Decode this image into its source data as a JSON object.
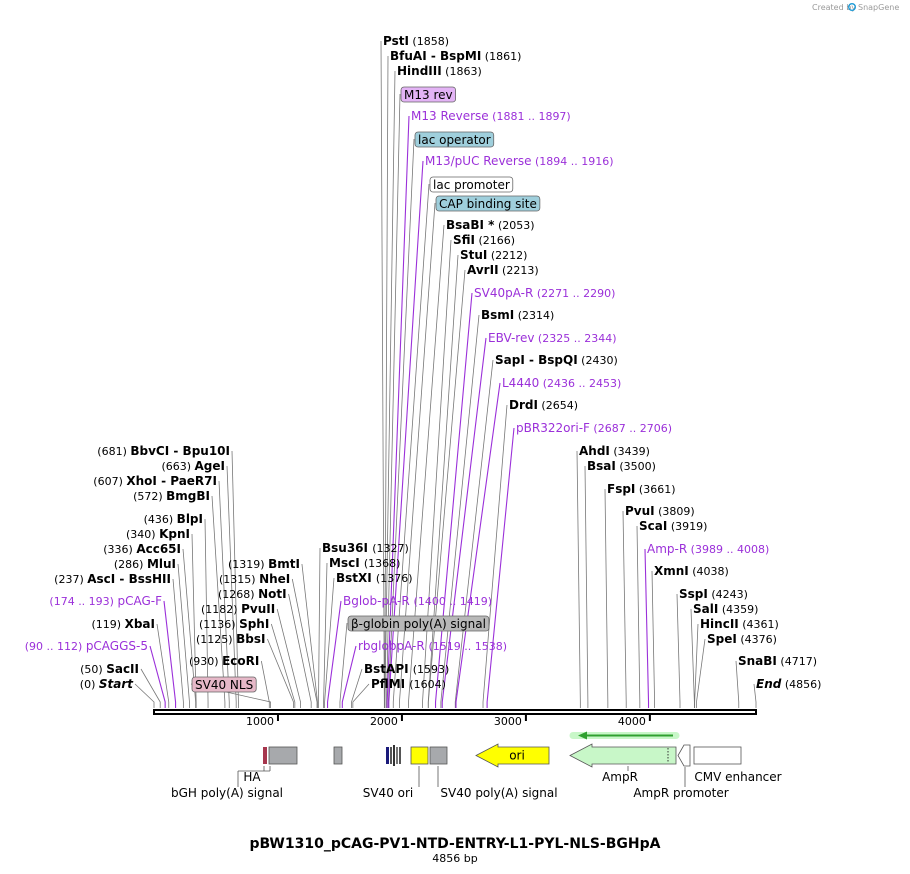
{
  "credit": {
    "created_by": "Created by",
    "brand": "SnapGene"
  },
  "title": "pBW1310_pCAG-PV1-NTD-ENTRY-L1-PYL-NLS-BGHpA",
  "length_label": "4856 bp",
  "total_bp": 4856,
  "axis_ticks": [
    {
      "bp": 1000,
      "label": "1000"
    },
    {
      "bp": 2000,
      "label": "2000"
    },
    {
      "bp": 3000,
      "label": "3000"
    },
    {
      "bp": 4000,
      "label": "4000"
    }
  ],
  "colors": {
    "primer": "#9b30d9",
    "site_line": "#777777",
    "m13_fill": "#e3b3f5",
    "lac_fill": "#9fcfdc",
    "cap_fill": "#9fcfdc",
    "sv40nls_fill": "#e6b8c8",
    "polyA_fill": "#b8b8b8",
    "ori_fill": "#ffff00",
    "ampr_fill": "#c8f7c8",
    "arrow_green": "#2fa02f"
  },
  "left_labels": [
    {
      "bp": 681,
      "pos": "(681)",
      "name": "BbvCI",
      "name2": "Bpu10I"
    },
    {
      "bp": 663,
      "pos": "(663)",
      "name": "AgeI"
    },
    {
      "bp": 607,
      "pos": "(607)",
      "name": "XhoI",
      "name2": "PaeR7I"
    },
    {
      "bp": 572,
      "pos": "(572)",
      "name": "BmgBI"
    },
    {
      "bp": 436,
      "pos": "(436)",
      "name": "BlpI"
    },
    {
      "bp": 340,
      "pos": "(340)",
      "name": "KpnI"
    },
    {
      "bp": 336,
      "pos": "(336)",
      "name": "Acc65I"
    },
    {
      "bp": 286,
      "pos": "(286)",
      "name": "MluI"
    },
    {
      "bp": 237,
      "pos": "(237)",
      "name": "AscI",
      "name2": "BssHII"
    },
    {
      "bp": 174,
      "pos": "(174 .. 193)",
      "name": "pCAG-F",
      "primer": true
    },
    {
      "bp": 119,
      "pos": "(119)",
      "name": "XbaI"
    },
    {
      "bp": 90,
      "pos": "(90 .. 112)",
      "name": "pCAGGS-5",
      "primer": true
    },
    {
      "bp": 50,
      "pos": "(50)",
      "name": "SacII"
    },
    {
      "bp": 0,
      "pos": "(0)",
      "name": "Start",
      "italic": true
    }
  ],
  "mid_left_labels": [
    {
      "bp": 1319,
      "pos": "(1319)",
      "name": "BmtI"
    },
    {
      "bp": 1315,
      "pos": "(1315)",
      "name": "NheI"
    },
    {
      "bp": 1268,
      "pos": "(1268)",
      "name": "NotI"
    },
    {
      "bp": 1182,
      "pos": "(1182)",
      "name": "PvuII"
    },
    {
      "bp": 1136,
      "pos": "(1136)",
      "name": "SphI"
    },
    {
      "bp": 1125,
      "pos": "(1125)",
      "name": "BbsI"
    },
    {
      "bp": 930,
      "pos": "(930)",
      "name": "EcoRI"
    }
  ],
  "mid_labels": [
    {
      "bp": 1327,
      "name": "Bsu36I",
      "pos": "(1327)"
    },
    {
      "bp": 1368,
      "name": "MscI",
      "pos": "(1368)"
    },
    {
      "bp": 1376,
      "name": "BstXI",
      "pos": "(1376)"
    },
    {
      "bp": 1400,
      "name": "Bglob-pA-R",
      "pos": "(1400 .. 1419)",
      "primer": true
    },
    {
      "bp": 1519,
      "name": "rbglobpA-R",
      "pos": "(1519 .. 1538)",
      "primer": true
    },
    {
      "bp": 1593,
      "name": "BstAPI",
      "pos": "(1593)"
    },
    {
      "bp": 1604,
      "name": "PflMI",
      "pos": "(1604)"
    }
  ],
  "top_labels": [
    {
      "bp": 1858,
      "name": "PstI",
      "pos": "(1858)"
    },
    {
      "bp": 1861,
      "name": "BfuAI",
      "name2": "BspMI",
      "pos": "(1861)"
    },
    {
      "bp": 1863,
      "name": "HindIII",
      "pos": "(1863)"
    },
    {
      "bp": 1875,
      "name": "M13 rev",
      "box": "m13"
    },
    {
      "bp": 1881,
      "name": "M13 Reverse",
      "pos": "(1881 .. 1897)",
      "primer": true
    },
    {
      "bp": 1890,
      "name": "lac operator",
      "box": "lac"
    },
    {
      "bp": 1894,
      "name": "M13/pUC Reverse",
      "pos": "(1894 .. 1916)",
      "primer": true
    },
    {
      "bp": 1930,
      "name": "lac promoter",
      "box": "plain"
    },
    {
      "bp": 1980,
      "name": "CAP binding site",
      "box": "cap"
    },
    {
      "bp": 2053,
      "name": "BsaBI *",
      "pos": "(2053)"
    },
    {
      "bp": 2166,
      "name": "SfiI",
      "pos": "(2166)"
    },
    {
      "bp": 2212,
      "name": "StuI",
      "pos": "(2212)"
    },
    {
      "bp": 2213,
      "name": "AvrII",
      "pos": "(2213)"
    },
    {
      "bp": 2271,
      "name": "SV40pA-R",
      "pos": "(2271 .. 2290)",
      "primer": true
    },
    {
      "bp": 2314,
      "name": "BsmI",
      "pos": "(2314)"
    },
    {
      "bp": 2325,
      "name": "EBV-rev",
      "pos": "(2325 .. 2344)",
      "primer": true
    },
    {
      "bp": 2430,
      "name": "SapI",
      "name2": "BspQI",
      "pos": "(2430)"
    },
    {
      "bp": 2436,
      "name": "L4440",
      "pos": "(2436 .. 2453)",
      "primer": true
    },
    {
      "bp": 2654,
      "name": "DrdI",
      "pos": "(2654)"
    },
    {
      "bp": 2687,
      "name": "pBR322ori-F",
      "pos": "(2687 .. 2706)",
      "primer": true
    }
  ],
  "right_labels": [
    {
      "bp": 3439,
      "name": "AhdI",
      "pos": "(3439)"
    },
    {
      "bp": 3500,
      "name": "BsaI",
      "pos": "(3500)"
    },
    {
      "bp": 3661,
      "name": "FspI",
      "pos": "(3661)"
    },
    {
      "bp": 3809,
      "name": "PvuI",
      "pos": "(3809)"
    },
    {
      "bp": 3919,
      "name": "ScaI",
      "pos": "(3919)"
    },
    {
      "bp": 3989,
      "name": "Amp-R",
      "pos": "(3989 .. 4008)",
      "primer": true
    },
    {
      "bp": 4038,
      "name": "XmnI",
      "pos": "(4038)"
    },
    {
      "bp": 4243,
      "name": "SspI",
      "pos": "(4243)"
    },
    {
      "bp": 4359,
      "name": "SalI",
      "pos": "(4359)"
    },
    {
      "bp": 4361,
      "name": "HincII",
      "pos": "(4361)"
    },
    {
      "bp": 4376,
      "name": "SpeI",
      "pos": "(4376)"
    },
    {
      "bp": 4717,
      "name": "SnaBI",
      "pos": "(4717)"
    },
    {
      "bp": 4856,
      "name": "End",
      "pos": "(4856)",
      "italic": true
    }
  ],
  "above_features": [
    {
      "name": "SV40 NLS",
      "bp": 940,
      "box": "sv40nls"
    },
    {
      "name": "β-globin poly(A) signal",
      "bp": 1500,
      "box": "polyA"
    }
  ],
  "features_below": [
    {
      "name": "HA",
      "kind": "ha"
    },
    {
      "name": "bGH poly(A) signal",
      "kind": "grey"
    },
    {
      "name": "SV40 ori",
      "kind": "yellow"
    },
    {
      "name": "SV40 poly(A) signal",
      "kind": "grey"
    },
    {
      "name": "ori",
      "kind": "ori"
    },
    {
      "name": "AmpR",
      "kind": "ampr"
    },
    {
      "name": "AmpR promoter",
      "kind": "small"
    },
    {
      "name": "CMV enhancer",
      "kind": "white"
    }
  ]
}
